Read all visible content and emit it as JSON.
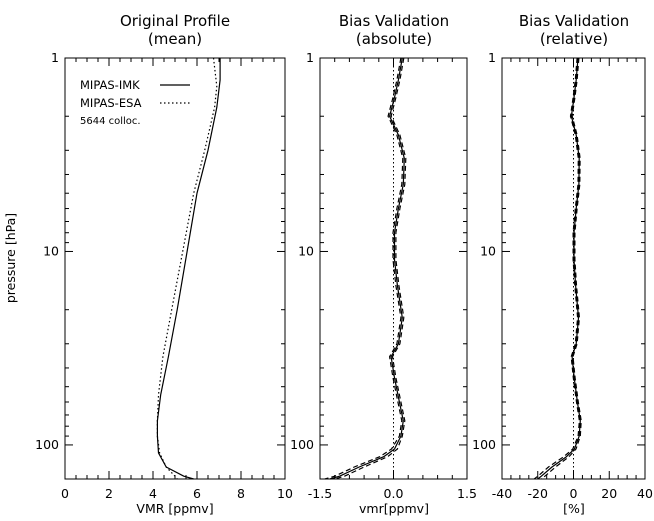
{
  "chart_data": [
    {
      "type": "line",
      "title": "Original Profile",
      "subtitle": "(mean)",
      "xlabel": "VMR [ppmv]",
      "ylabel": "pressure [hPa]",
      "xlim": [
        0,
        10
      ],
      "ylim": [
        150,
        1
      ],
      "yscale": "log",
      "xticks": [
        "0",
        "2",
        "4",
        "6",
        "8",
        "10"
      ],
      "yticks": [
        "1",
        "10",
        "100"
      ],
      "legend": {
        "placement": "top-left",
        "entries": [
          "MIPAS-IMK",
          "MIPAS-ESA"
        ],
        "note": "5644 colloc."
      },
      "series": [
        {
          "name": "MIPAS-IMK",
          "style": "solid",
          "points": [
            [
              7.05,
              1
            ],
            [
              7.05,
              1.3
            ],
            [
              6.9,
              1.8
            ],
            [
              6.5,
              3
            ],
            [
              6.0,
              5
            ],
            [
              5.55,
              10
            ],
            [
              5.1,
              20
            ],
            [
              4.7,
              35
            ],
            [
              4.35,
              55
            ],
            [
              4.2,
              75
            ],
            [
              4.2,
              90
            ],
            [
              4.25,
              110
            ],
            [
              4.6,
              130
            ],
            [
              5.4,
              145
            ],
            [
              5.85,
              150
            ]
          ]
        },
        {
          "name": "MIPAS-ESA",
          "style": "dotted",
          "points": [
            [
              6.75,
              1
            ],
            [
              6.9,
              1.4
            ],
            [
              6.8,
              1.8
            ],
            [
              6.35,
              3
            ],
            [
              5.85,
              5
            ],
            [
              5.35,
              10
            ],
            [
              4.85,
              20
            ],
            [
              4.45,
              35
            ],
            [
              4.25,
              55
            ],
            [
              4.2,
              75
            ],
            [
              4.2,
              90
            ],
            [
              4.3,
              110
            ],
            [
              4.6,
              130
            ],
            [
              5.0,
              145
            ],
            [
              5.1,
              150
            ]
          ]
        }
      ]
    },
    {
      "type": "line",
      "title": "Bias Validation",
      "subtitle": "(absolute)",
      "xlabel": "vmr[ppmv]",
      "xlim": [
        -1.5,
        1.5
      ],
      "ylim": [
        150,
        1
      ],
      "yscale": "log",
      "xticks": [
        "-1.5",
        "0.0",
        "1.5"
      ],
      "yticks": [
        "1",
        "10",
        "100"
      ],
      "reference_line_x": 0,
      "series": [
        {
          "style": "solid",
          "points": [
            [
              0.18,
              1
            ],
            [
              0.1,
              1.3
            ],
            [
              0.02,
              1.6
            ],
            [
              -0.08,
              2
            ],
            [
              0.1,
              2.5
            ],
            [
              0.22,
              3.3
            ],
            [
              0.2,
              4.5
            ],
            [
              0.1,
              6
            ],
            [
              0.02,
              8
            ],
            [
              0.02,
              11
            ],
            [
              0.08,
              15
            ],
            [
              0.18,
              22
            ],
            [
              0.1,
              30
            ],
            [
              -0.05,
              35
            ],
            [
              0.02,
              45
            ],
            [
              0.12,
              60
            ],
            [
              0.2,
              75
            ],
            [
              0.15,
              90
            ],
            [
              0.02,
              105
            ],
            [
              -0.2,
              115
            ],
            [
              -0.7,
              130
            ],
            [
              -1.1,
              145
            ],
            [
              -1.3,
              150
            ]
          ]
        },
        {
          "style": "dashed",
          "points": [
            [
              0.15,
              1
            ],
            [
              0.07,
              1.3
            ],
            [
              -0.01,
              1.6
            ],
            [
              -0.11,
              2
            ],
            [
              0.07,
              2.5
            ],
            [
              0.19,
              3.3
            ],
            [
              0.17,
              4.5
            ],
            [
              0.07,
              6
            ],
            [
              -0.01,
              8
            ],
            [
              -0.01,
              11
            ],
            [
              0.05,
              15
            ],
            [
              0.15,
              22
            ],
            [
              0.07,
              30
            ],
            [
              -0.08,
              35
            ],
            [
              -0.01,
              45
            ],
            [
              0.09,
              60
            ],
            [
              0.17,
              75
            ],
            [
              0.12,
              90
            ],
            [
              -0.04,
              105
            ],
            [
              -0.28,
              115
            ],
            [
              -0.8,
              130
            ],
            [
              -1.2,
              145
            ],
            [
              -1.4,
              150
            ]
          ]
        },
        {
          "style": "dashed",
          "points": [
            [
              0.21,
              1
            ],
            [
              0.13,
              1.3
            ],
            [
              0.05,
              1.6
            ],
            [
              -0.05,
              2
            ],
            [
              0.13,
              2.5
            ],
            [
              0.25,
              3.3
            ],
            [
              0.23,
              4.5
            ],
            [
              0.13,
              6
            ],
            [
              0.05,
              8
            ],
            [
              0.05,
              11
            ],
            [
              0.11,
              15
            ],
            [
              0.21,
              22
            ],
            [
              0.13,
              30
            ],
            [
              -0.02,
              35
            ],
            [
              0.05,
              45
            ],
            [
              0.15,
              60
            ],
            [
              0.23,
              75
            ],
            [
              0.18,
              90
            ],
            [
              0.08,
              105
            ],
            [
              -0.12,
              115
            ],
            [
              -0.6,
              130
            ],
            [
              -1.0,
              145
            ],
            [
              -1.2,
              150
            ]
          ]
        }
      ]
    },
    {
      "type": "line",
      "title": "Bias Validation",
      "subtitle": "(relative)",
      "xlabel": "[%]",
      "xlim": [
        -40,
        40
      ],
      "ylim": [
        150,
        1
      ],
      "yscale": "log",
      "xticks": [
        "-40",
        "-20",
        "0",
        "20",
        "40"
      ],
      "yticks": [
        "1",
        "10",
        "100"
      ],
      "reference_line_x": 0,
      "series": [
        {
          "style": "solid",
          "points": [
            [
              2.5,
              1
            ],
            [
              1.5,
              1.3
            ],
            [
              0.3,
              1.6
            ],
            [
              -1.2,
              2
            ],
            [
              1.5,
              2.5
            ],
            [
              3.2,
              3.3
            ],
            [
              3,
              4.5
            ],
            [
              1.5,
              6
            ],
            [
              0.3,
              8
            ],
            [
              0.3,
              11
            ],
            [
              1.2,
              15
            ],
            [
              2.8,
              22
            ],
            [
              1.5,
              30
            ],
            [
              -0.8,
              35
            ],
            [
              0.4,
              45
            ],
            [
              2.2,
              60
            ],
            [
              3.8,
              75
            ],
            [
              3.2,
              90
            ],
            [
              0.5,
              105
            ],
            [
              -4,
              115
            ],
            [
              -12,
              130
            ],
            [
              -18,
              145
            ],
            [
              -20,
              150
            ]
          ]
        },
        {
          "style": "dashed",
          "points": [
            [
              2.0,
              1
            ],
            [
              1.0,
              1.3
            ],
            [
              -0.2,
              1.6
            ],
            [
              -1.7,
              2
            ],
            [
              1.0,
              2.5
            ],
            [
              2.7,
              3.3
            ],
            [
              2.5,
              4.5
            ],
            [
              1.0,
              6
            ],
            [
              -0.2,
              8
            ],
            [
              -0.2,
              11
            ],
            [
              0.7,
              15
            ],
            [
              2.3,
              22
            ],
            [
              1.0,
              30
            ],
            [
              -1.3,
              35
            ],
            [
              -0.1,
              45
            ],
            [
              1.7,
              60
            ],
            [
              3.3,
              75
            ],
            [
              2.6,
              90
            ],
            [
              -0.4,
              105
            ],
            [
              -5.5,
              115
            ],
            [
              -14,
              130
            ],
            [
              -20,
              145
            ],
            [
              -22,
              150
            ]
          ]
        },
        {
          "style": "dashed",
          "points": [
            [
              3.0,
              1
            ],
            [
              2.0,
              1.3
            ],
            [
              0.8,
              1.6
            ],
            [
              -0.7,
              2
            ],
            [
              2.0,
              2.5
            ],
            [
              3.7,
              3.3
            ],
            [
              3.5,
              4.5
            ],
            [
              2.0,
              6
            ],
            [
              0.8,
              8
            ],
            [
              0.8,
              11
            ],
            [
              1.7,
              15
            ],
            [
              3.3,
              22
            ],
            [
              2.0,
              30
            ],
            [
              -0.3,
              35
            ],
            [
              0.9,
              45
            ],
            [
              2.7,
              60
            ],
            [
              4.3,
              75
            ],
            [
              3.8,
              90
            ],
            [
              1.4,
              105
            ],
            [
              -2.5,
              115
            ],
            [
              -10,
              130
            ],
            [
              -16,
              145
            ],
            [
              -18,
              150
            ]
          ]
        }
      ]
    }
  ]
}
